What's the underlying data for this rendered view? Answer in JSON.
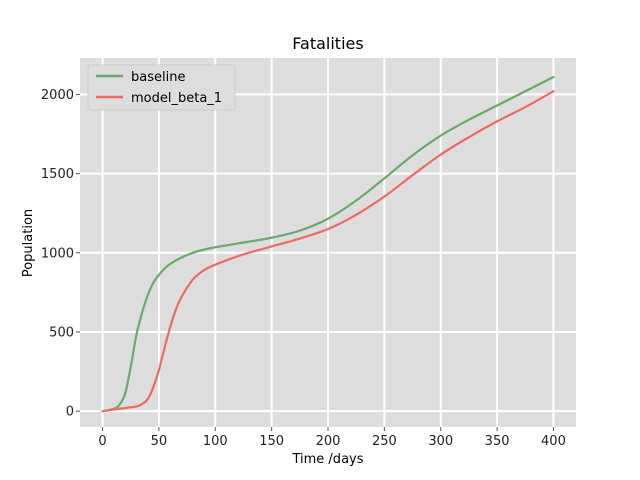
{
  "chart_data": {
    "type": "line",
    "title": "Fatalities",
    "xlabel": "Time /days",
    "ylabel": "Population",
    "xlim": [
      -20,
      420
    ],
    "ylim": [
      -100,
      2230
    ],
    "xticks": [
      0,
      50,
      100,
      150,
      200,
      250,
      300,
      350,
      400
    ],
    "yticks": [
      0,
      500,
      1000,
      1500,
      2000
    ],
    "grid": true,
    "legend_position": "top-left",
    "series": [
      {
        "name": "baseline",
        "color": "#6aaa6a",
        "x": [
          0,
          10,
          15,
          20,
          25,
          30,
          35,
          40,
          45,
          50,
          55,
          60,
          70,
          80,
          90,
          100,
          125,
          150,
          175,
          200,
          225,
          250,
          275,
          300,
          325,
          350,
          375,
          400
        ],
        "y": [
          0,
          15,
          40,
          110,
          280,
          480,
          620,
          730,
          810,
          860,
          900,
          930,
          970,
          1000,
          1020,
          1035,
          1065,
          1095,
          1140,
          1215,
          1330,
          1470,
          1615,
          1740,
          1840,
          1930,
          2020,
          2110
        ]
      },
      {
        "name": "model_beta_1",
        "color": "#ec6a64",
        "x": [
          0,
          10,
          20,
          30,
          35,
          40,
          45,
          50,
          55,
          60,
          65,
          70,
          80,
          90,
          100,
          125,
          150,
          175,
          200,
          225,
          250,
          275,
          300,
          325,
          350,
          375,
          400
        ],
        "y": [
          0,
          10,
          20,
          30,
          45,
          75,
          150,
          260,
          400,
          530,
          640,
          720,
          830,
          890,
          925,
          990,
          1040,
          1090,
          1150,
          1240,
          1355,
          1490,
          1620,
          1730,
          1830,
          1920,
          2020
        ]
      }
    ]
  }
}
